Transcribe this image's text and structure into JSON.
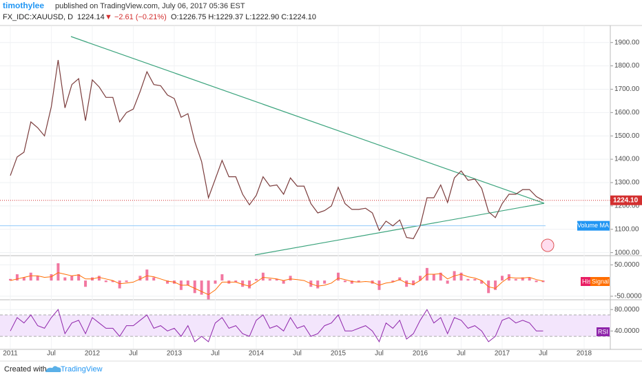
{
  "header": {
    "author": "timothylee",
    "published": "published on TradingView.com, July 06, 2017 05:36 EST",
    "symbol": "FX_IDC:XAUUSD, D",
    "price": "1224.14",
    "change": "▼ −2.61 (−0.21%)",
    "ohlc": "O:1226.75 H:1229.37 L:1222.90 C:1224.10"
  },
  "chart_data": [
    {
      "type": "line",
      "color": "#7a3b3b",
      "categories": [
        "2011",
        null,
        null,
        null,
        null,
        null,
        "Jul",
        null,
        null,
        null,
        null,
        null,
        "2012",
        null,
        null,
        null,
        null,
        null,
        "Jul",
        null,
        null,
        null,
        null,
        null,
        "2013",
        null,
        null,
        null,
        null,
        null,
        "Jul",
        null,
        null,
        null,
        null,
        null,
        "2014",
        null,
        null,
        null,
        null,
        null,
        "Jul",
        null,
        null,
        null,
        null,
        null,
        "2015",
        null,
        null,
        null,
        null,
        null,
        "Jul",
        null,
        null,
        null,
        null,
        null,
        "2016",
        null,
        null,
        null,
        null,
        null,
        "Jul",
        null,
        null,
        null,
        null,
        null,
        "2017",
        null,
        null,
        null,
        null,
        null,
        "Jul",
        null,
        null,
        null,
        null,
        null,
        "2018"
      ],
      "values": [
        1330,
        1410,
        1430,
        1560,
        1535,
        1500,
        1625,
        1825,
        1620,
        1720,
        1745,
        1565,
        1740,
        1710,
        1665,
        1665,
        1560,
        1600,
        1615,
        1690,
        1775,
        1720,
        1715,
        1675,
        1660,
        1580,
        1595,
        1475,
        1390,
        1235,
        1315,
        1395,
        1325,
        1325,
        1250,
        1205,
        1245,
        1325,
        1285,
        1290,
        1250,
        1320,
        1285,
        1285,
        1210,
        1170,
        1180,
        1200,
        1280,
        1210,
        1185,
        1185,
        1190,
        1170,
        1095,
        1135,
        1115,
        1140,
        1065,
        1060,
        1115,
        1235,
        1235,
        1290,
        1215,
        1320,
        1350,
        1310,
        1315,
        1275,
        1175,
        1150,
        1210,
        1250,
        1250,
        1270,
        1270,
        1240,
        1224,
        null,
        null,
        null,
        null,
        null,
        null
      ],
      "ylim": [
        990,
        1970
      ],
      "yticks": [
        {
          "value": 1000,
          "label": "1000.00"
        },
        {
          "value": 1100,
          "label": "1100.00"
        },
        {
          "value": 1200,
          "label": "1200.00"
        },
        {
          "value": 1300,
          "label": "1300.00"
        },
        {
          "value": 1400,
          "label": "1400.00"
        },
        {
          "value": 1500,
          "label": "1500.00"
        },
        {
          "value": 1600,
          "label": "1600.00"
        },
        {
          "value": 1700,
          "label": "1700.00"
        },
        {
          "value": 1800,
          "label": "1800.00"
        },
        {
          "value": 1900,
          "label": "1900.00"
        }
      ],
      "last_price": {
        "value": 1224.1,
        "label": "1224.10"
      },
      "volume_ma": {
        "name": "Volume MA",
        "value": 1115
      }
    },
    {
      "type": "macd",
      "ylim": [
        -59,
        77
      ],
      "yticks": [
        {
          "value": 50,
          "label": "50.0000"
        },
        {
          "value": -50,
          "label": "-50.0000"
        }
      ],
      "series": [
        {
          "name": "Hist",
          "color": "#e91e63",
          "values": [
            5,
            20,
            10,
            25,
            15,
            0,
            20,
            55,
            10,
            15,
            20,
            -20,
            10,
            15,
            -5,
            -5,
            -25,
            -5,
            0,
            15,
            35,
            10,
            0,
            -10,
            -10,
            -30,
            -15,
            -40,
            -45,
            -60,
            -10,
            20,
            -10,
            -5,
            -20,
            -25,
            5,
            25,
            5,
            5,
            -10,
            15,
            0,
            0,
            -20,
            -25,
            -10,
            0,
            25,
            -5,
            -10,
            -5,
            0,
            -10,
            -30,
            0,
            -5,
            10,
            -20,
            -15,
            15,
            40,
            20,
            25,
            -10,
            30,
            25,
            5,
            5,
            -10,
            -40,
            -30,
            15,
            20,
            5,
            10,
            10,
            -5,
            -5,
            null,
            null,
            null,
            null,
            null,
            null
          ]
        },
        {
          "name": "Signal",
          "color": "#ff6d00",
          "values": [
            0,
            5,
            10,
            15,
            15,
            10,
            12,
            25,
            20,
            15,
            18,
            5,
            5,
            10,
            5,
            0,
            -10,
            -8,
            -5,
            5,
            15,
            12,
            5,
            -2,
            -5,
            -15,
            -15,
            -25,
            -35,
            -45,
            -30,
            -5,
            -5,
            -5,
            -12,
            -18,
            -5,
            10,
            8,
            5,
            0,
            5,
            3,
            0,
            -10,
            -18,
            -15,
            -8,
            8,
            3,
            -3,
            -5,
            -3,
            -5,
            -15,
            -8,
            -5,
            3,
            -8,
            -12,
            0,
            20,
            20,
            22,
            5,
            15,
            20,
            12,
            8,
            0,
            -20,
            -25,
            -5,
            10,
            8,
            8,
            10,
            3,
            -2,
            null,
            null,
            null,
            null,
            null,
            null
          ]
        }
      ]
    },
    {
      "type": "rsi",
      "ylim": [
        7,
        97
      ],
      "yticks": [
        {
          "value": 80,
          "label": "80.0000"
        },
        {
          "value": 40,
          "label": "40.0000"
        }
      ],
      "band": [
        30,
        70
      ],
      "series": [
        {
          "name": "RSI",
          "color": "#8e24aa",
          "values": [
            40,
            65,
            55,
            70,
            50,
            45,
            65,
            80,
            35,
            55,
            60,
            35,
            65,
            55,
            45,
            45,
            30,
            50,
            50,
            60,
            70,
            45,
            50,
            40,
            45,
            30,
            50,
            20,
            30,
            20,
            55,
            65,
            45,
            50,
            35,
            30,
            60,
            70,
            45,
            50,
            40,
            65,
            45,
            50,
            30,
            35,
            50,
            55,
            70,
            40,
            40,
            45,
            50,
            40,
            20,
            55,
            45,
            60,
            25,
            35,
            60,
            80,
            55,
            65,
            35,
            65,
            60,
            45,
            50,
            40,
            20,
            30,
            60,
            65,
            55,
            60,
            55,
            40,
            40,
            null,
            null,
            null,
            null,
            null,
            null
          ]
        }
      ]
    }
  ],
  "footer": {
    "created": "Created with",
    "brand": "TradingView"
  }
}
